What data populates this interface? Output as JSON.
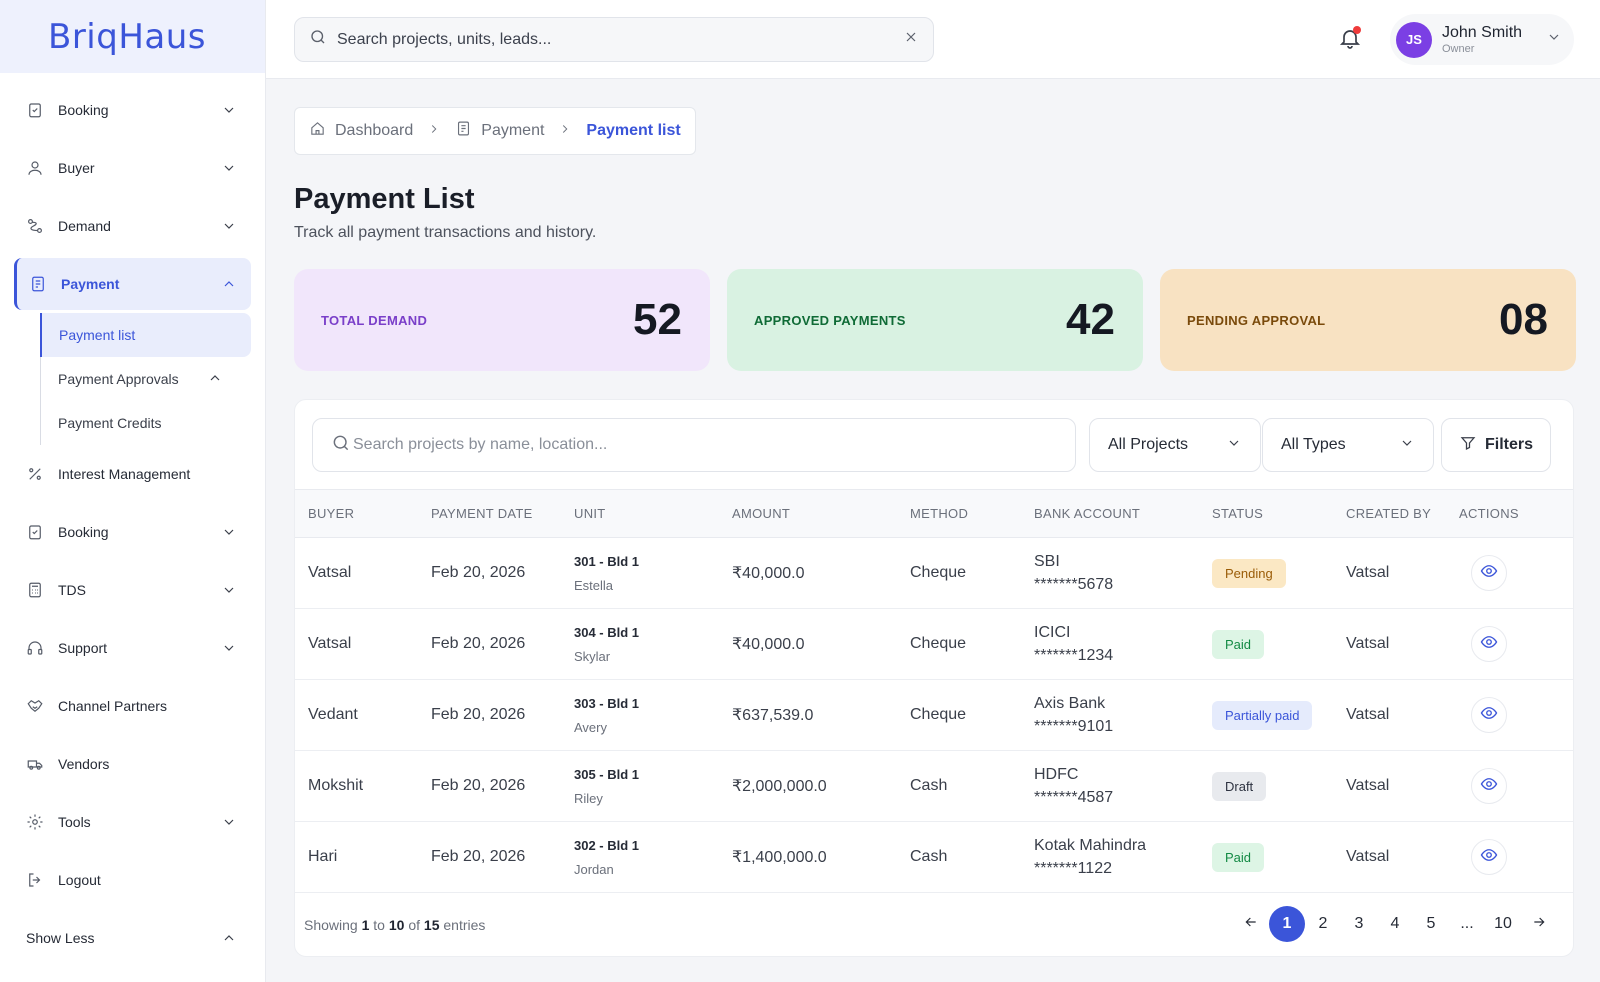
{
  "app": {
    "logo": "BriqHaus"
  },
  "topbar": {
    "search_placeholder": "Search projects, units, leads...",
    "user": {
      "initials": "JS",
      "name": "John Smith",
      "role": "Owner"
    }
  },
  "sidebar": {
    "items": [
      {
        "label": "Booking",
        "icon": "clipboard-check-icon"
      },
      {
        "label": "Buyer",
        "icon": "user-icon"
      },
      {
        "label": "Demand",
        "icon": "route-icon"
      },
      {
        "label": "Payment",
        "icon": "receipt-icon"
      }
    ],
    "payment_sub": [
      "Payment list",
      "Payment Approvals",
      "Payment Credits"
    ],
    "items_after": [
      {
        "label": "Interest Management",
        "icon": "percent-icon"
      },
      {
        "label": "Booking",
        "icon": "clipboard-check-icon"
      },
      {
        "label": "TDS",
        "icon": "calculator-icon"
      },
      {
        "label": "Support",
        "icon": "headset-icon"
      },
      {
        "label": "Channel Partners",
        "icon": "handshake-icon"
      },
      {
        "label": "Vendors",
        "icon": "truck-icon"
      },
      {
        "label": "Tools",
        "icon": "gear-icon"
      },
      {
        "label": "Logout",
        "icon": "logout-icon"
      }
    ],
    "show_less": "Show Less"
  },
  "breadcrumb": {
    "home": "Dashboard",
    "parent": "Payment",
    "current": "Payment list"
  },
  "page": {
    "title": "Payment List",
    "subtitle": "Track all payment transactions and history."
  },
  "stats": [
    {
      "label": "TOTAL DEMAND",
      "value": "52"
    },
    {
      "label": "APPROVED PAYMENTS",
      "value": "42"
    },
    {
      "label": "PENDING APPROVAL",
      "value": "08"
    }
  ],
  "table_controls": {
    "search_placeholder": "Search projects by name, location...",
    "project_select": "All Projects",
    "type_select": "All Types",
    "filters_label": "Filters"
  },
  "table": {
    "headers": [
      "BUYER",
      "PAYMENT DATE",
      "UNIT",
      "AMOUNT",
      "METHOD",
      "BANK ACCOUNT",
      "STATUS",
      "CREATED BY",
      "ACTIONS"
    ],
    "rows": [
      {
        "buyer": "Vatsal",
        "date": "Feb 20, 2026",
        "unit": "301 - Bld 1",
        "unit_name": "Estella",
        "amount": "₹40,000.0",
        "method": "Cheque",
        "bank": "SBI",
        "account": "*******5678",
        "status": "Pending",
        "status_type": "pending",
        "created_by": "Vatsal"
      },
      {
        "buyer": "Vatsal",
        "date": "Feb 20, 2026",
        "unit": "304 - Bld 1",
        "unit_name": "Skylar",
        "amount": "₹40,000.0",
        "method": "Cheque",
        "bank": "ICICI",
        "account": "*******1234",
        "status": "Paid",
        "status_type": "paid",
        "created_by": "Vatsal"
      },
      {
        "buyer": "Vedant",
        "date": "Feb 20, 2026",
        "unit": "303 - Bld 1",
        "unit_name": "Avery",
        "amount": "₹637,539.0",
        "method": "Cheque",
        "bank": "Axis Bank",
        "account": "*******9101",
        "status": "Partially paid",
        "status_type": "partial",
        "created_by": "Vatsal"
      },
      {
        "buyer": "Mokshit",
        "date": "Feb 20, 2026",
        "unit": "305 - Bld 1",
        "unit_name": "Riley",
        "amount": "₹2,000,000.0",
        "method": "Cash",
        "bank": "HDFC",
        "account": "*******4587",
        "status": "Draft",
        "status_type": "draft",
        "created_by": "Vatsal"
      },
      {
        "buyer": "Hari",
        "date": "Feb 20, 2026",
        "unit": "302 - Bld 1",
        "unit_name": "Jordan",
        "amount": "₹1,400,000.0",
        "method": "Cash",
        "bank": "Kotak Mahindra",
        "account": "*******1122",
        "status": "Paid",
        "status_type": "paid",
        "created_by": "Vatsal"
      }
    ]
  },
  "footer": {
    "showing": "Showing",
    "from": "1",
    "to_word": "to",
    "to": "10",
    "of_word": "of",
    "total": "15",
    "entries": "entries",
    "pages": [
      "1",
      "2",
      "3",
      "4",
      "5",
      "...",
      "10"
    ],
    "current_page": "1"
  }
}
